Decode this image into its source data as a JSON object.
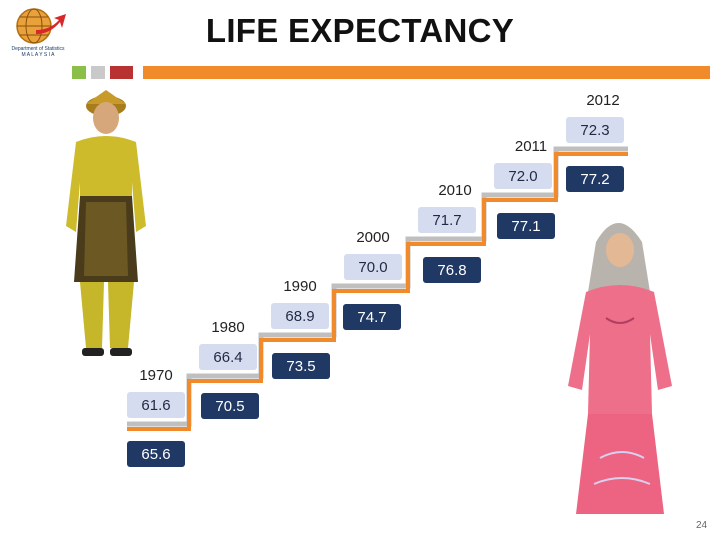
{
  "header": {
    "title": "LIFE EXPECTANCY",
    "logo_text_line1": "Department of Statistics",
    "logo_text_line2": "M A L A Y S I A"
  },
  "page_number": "24",
  "colors": {
    "male_box": "#d6dcef",
    "female_box": "#1f3864",
    "step_gray": "#bfbfbf",
    "step_orange": "#f08a2a",
    "accent_orange": "#f08a2a",
    "accent_green": "#8bbf4a",
    "accent_red": "#b83232"
  },
  "chart_data": {
    "type": "step",
    "categories": [
      "1970",
      "1980",
      "1990",
      "2000",
      "2010",
      "2011",
      "2012"
    ],
    "series": [
      {
        "values": [
          61.6,
          66.4,
          68.9,
          70.0,
          71.7,
          72.0,
          72.3
        ]
      },
      {
        "values": [
          65.6,
          70.5,
          73.5,
          74.7,
          76.8,
          77.1,
          77.2
        ]
      }
    ]
  }
}
